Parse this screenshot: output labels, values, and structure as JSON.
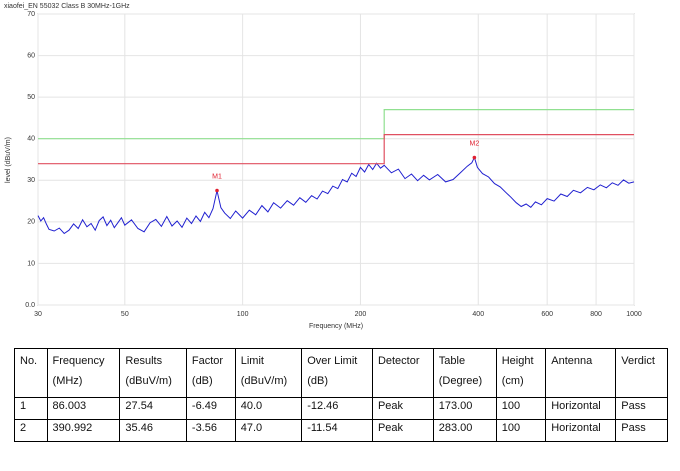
{
  "chart_data": {
    "type": "line",
    "title": "xiaofei_EN 55032 Class B 30MHz-1GHz",
    "x_label": "Frequency (MHz)",
    "y_label": "level (dBuV/m)",
    "xscale": "log",
    "grid": true,
    "xlim": [
      30,
      1000
    ],
    "ylim": [
      0,
      70
    ],
    "xticks": [
      30,
      50,
      100,
      200,
      400,
      600,
      800,
      1000
    ],
    "yticks": [
      {
        "value": 0,
        "label": "0.0"
      },
      10,
      20,
      30,
      40,
      50,
      60,
      70
    ],
    "series": [
      {
        "color": "#2020d0",
        "x": [
          30,
          30.5,
          31,
          31.5,
          32,
          33,
          34,
          35,
          36,
          37,
          38,
          39,
          40,
          41,
          42,
          43,
          44,
          45,
          46,
          47,
          48,
          49,
          50,
          52,
          54,
          56,
          58,
          60,
          62,
          64,
          66,
          68,
          70,
          72,
          74,
          76,
          78,
          80,
          82,
          84,
          86,
          88,
          90,
          93,
          96,
          100,
          104,
          108,
          112,
          116,
          120,
          125,
          130,
          135,
          140,
          145,
          150,
          155,
          160,
          165,
          170,
          175,
          180,
          185,
          190,
          195,
          200,
          205,
          210,
          215,
          220,
          225,
          230,
          240,
          250,
          260,
          270,
          280,
          290,
          300,
          315,
          330,
          345,
          360,
          375,
          385,
          391,
          398,
          410,
          425,
          440,
          455,
          470,
          485,
          500,
          515,
          530,
          545,
          560,
          580,
          600,
          625,
          650,
          675,
          700,
          730,
          760,
          790,
          820,
          850,
          880,
          910,
          940,
          970,
          1000
        ],
        "values": [
          21.5,
          20.2,
          21,
          19.5,
          18.2,
          17.8,
          18.5,
          17.2,
          18,
          19.5,
          18.4,
          20.5,
          18.8,
          19.6,
          18,
          20.3,
          21.2,
          19.1,
          20.4,
          18.6,
          19.8,
          21,
          19.2,
          20.5,
          18.4,
          17.6,
          19.8,
          20.6,
          18.9,
          21.3,
          19,
          20.2,
          18.7,
          20.9,
          19.6,
          21.4,
          20.1,
          22.3,
          21,
          23.2,
          27.5,
          23.4,
          22.1,
          20.8,
          22.6,
          20.9,
          22.8,
          21.7,
          23.9,
          22.4,
          24.6,
          23.3,
          25.1,
          24,
          25.8,
          24.7,
          26.3,
          25.5,
          27.4,
          26.8,
          28.6,
          28,
          30.2,
          29.6,
          31.7,
          30.9,
          33.1,
          32,
          33.8,
          32.6,
          34.1,
          32.9,
          33.6,
          31.8,
          32.7,
          30.4,
          31.5,
          29.9,
          31.2,
          30.1,
          31.4,
          29.6,
          30.2,
          31.8,
          33.4,
          34.2,
          35.5,
          33.1,
          31.6,
          30.8,
          29.2,
          28.4,
          27.1,
          25.9,
          24.6,
          23.7,
          24.3,
          23.5,
          24.8,
          24.1,
          25.6,
          25,
          26.7,
          26.1,
          27.6,
          27,
          28.3,
          27.7,
          28.9,
          28.2,
          29.4,
          28.8,
          30.1,
          29.3,
          29.6
        ]
      },
      {
        "color": "#90e090",
        "x": [
          30,
          230,
          230,
          1000
        ],
        "values": [
          40,
          40,
          47,
          47
        ]
      },
      {
        "color": "#e05060",
        "x": [
          30,
          230,
          230,
          1000
        ],
        "values": [
          34,
          34,
          41,
          41
        ]
      }
    ],
    "markers": [
      {
        "label": "M1",
        "x": 86.003,
        "value": 27.54,
        "color": "#e02030"
      },
      {
        "label": "M2",
        "x": 390.992,
        "value": 35.46,
        "color": "#e02030"
      }
    ]
  },
  "table": {
    "header": [
      [
        "No."
      ],
      [
        "Frequency",
        "(MHz)"
      ],
      [
        "Results",
        "(dBuV/m)"
      ],
      [
        "Factor",
        "(dB)"
      ],
      [
        "Limit",
        "(dBuV/m)"
      ],
      [
        "Over Limit",
        "(dB)"
      ],
      [
        "Detector"
      ],
      [
        "Table",
        "(Degree)"
      ],
      [
        "Height",
        "(cm)"
      ],
      [
        "Antenna"
      ],
      [
        "Verdict"
      ]
    ],
    "rows": [
      [
        "1",
        "86.003",
        "27.54",
        "-6.49",
        "40.0",
        "-12.46",
        "Peak",
        "173.00",
        "100",
        "Horizontal",
        "Pass"
      ],
      [
        "2",
        "390.992",
        "35.46",
        "-3.56",
        "47.0",
        "-11.54",
        "Peak",
        "283.00",
        "100",
        "Horizontal",
        "Pass"
      ]
    ]
  }
}
